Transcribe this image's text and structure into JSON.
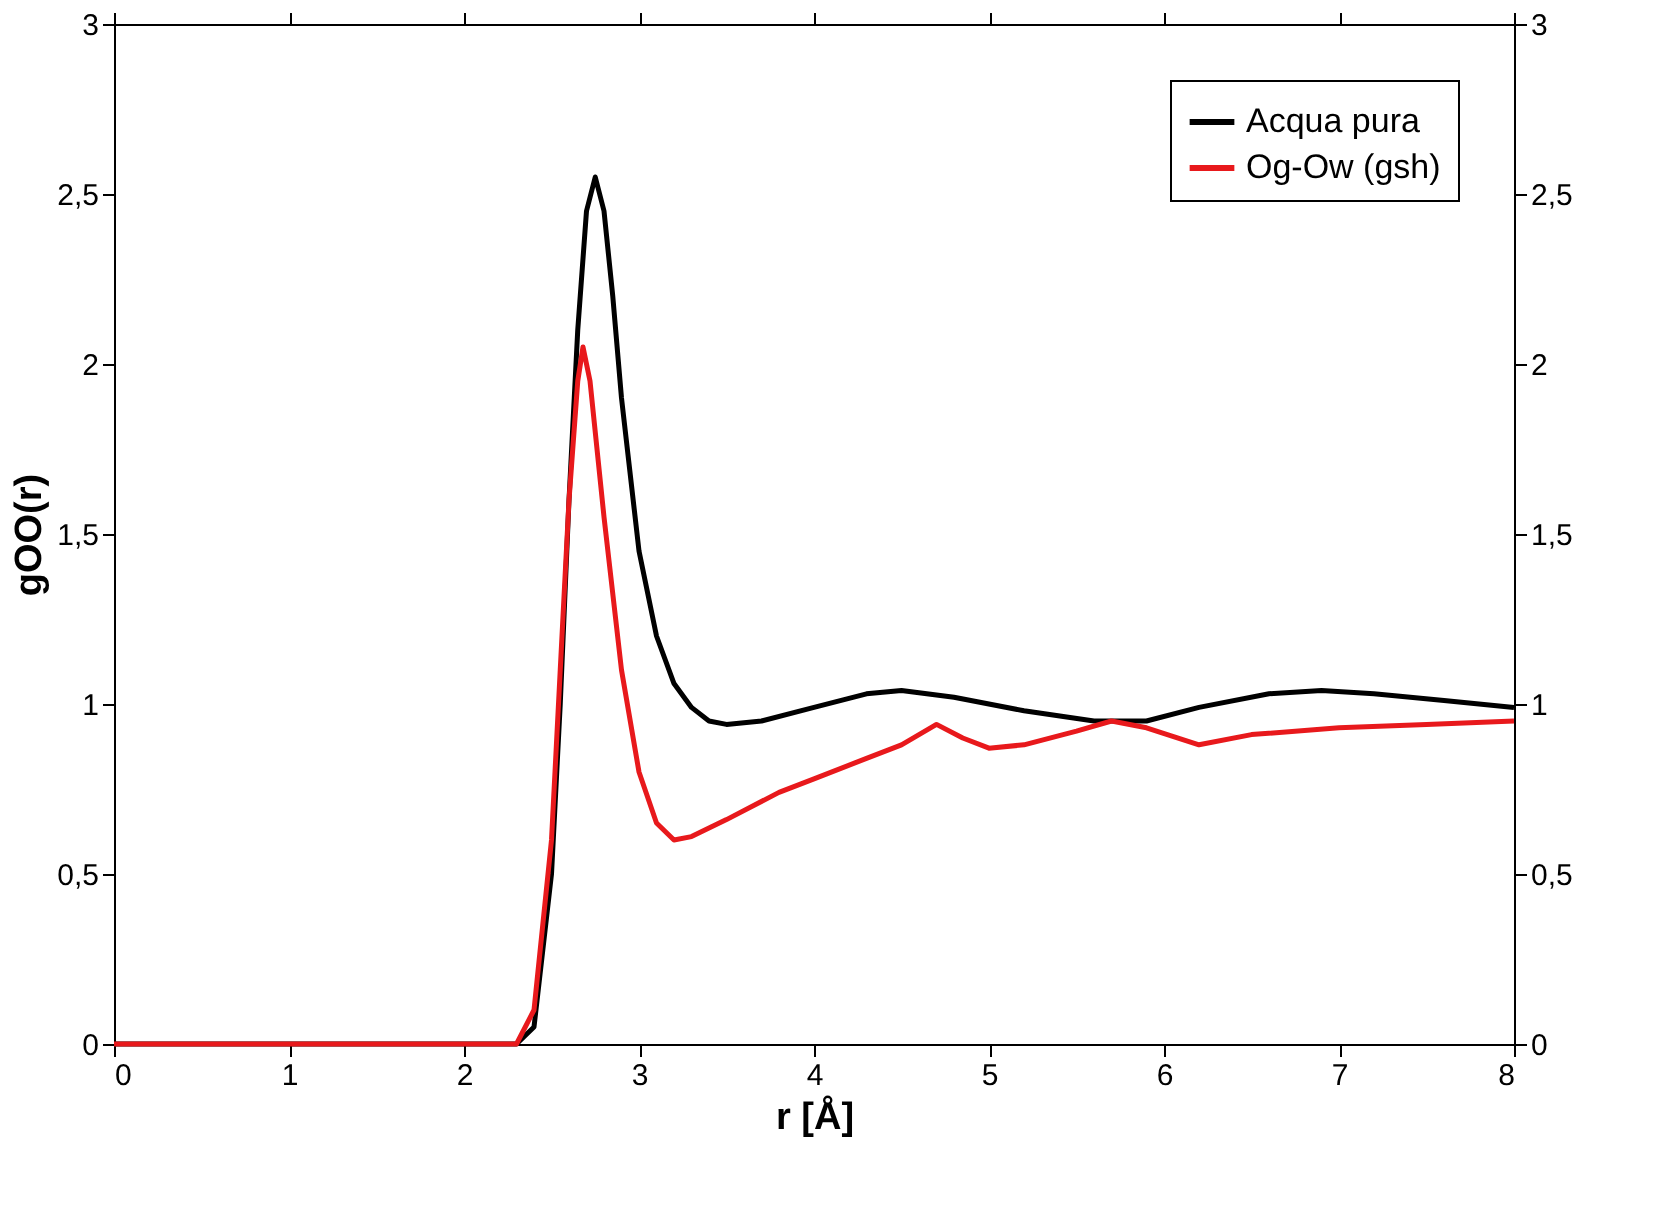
{
  "chart_data": {
    "type": "line",
    "xlabel": "r [Å]",
    "ylabel": "gOO(r)",
    "xlim": [
      0,
      8
    ],
    "xticks": [
      0,
      1,
      2,
      3,
      4,
      5,
      6,
      7,
      8
    ],
    "ylim": [
      0,
      3
    ],
    "yticks": [
      0,
      {
        "value": 0.5,
        "label": "0,5"
      },
      1,
      {
        "value": 1.5,
        "label": "1,5"
      },
      2,
      {
        "value": 2.5,
        "label": "2,5"
      },
      3
    ],
    "y2lim": [
      0,
      3
    ],
    "y2ticks": [
      0,
      {
        "value": 0.5,
        "label": "0,5"
      },
      1,
      {
        "value": 1.5,
        "label": "1,5"
      },
      2,
      {
        "value": 2.5,
        "label": "2,5"
      },
      3
    ],
    "grid": false,
    "legend": "top right",
    "marker": "none",
    "line_style": "solid",
    "series": [
      {
        "name": "Acqua pura",
        "color": "#000000",
        "x": [
          0,
          2.3,
          2.4,
          2.5,
          2.55,
          2.6,
          2.65,
          2.7,
          2.75,
          2.8,
          2.85,
          2.9,
          3.0,
          3.1,
          3.2,
          3.3,
          3.4,
          3.5,
          3.7,
          4.0,
          4.3,
          4.5,
          4.8,
          5.2,
          5.6,
          5.9,
          6.2,
          6.6,
          6.9,
          7.2,
          7.6,
          8.0
        ],
        "values": [
          0,
          0,
          0.05,
          0.5,
          1.0,
          1.6,
          2.1,
          2.45,
          2.55,
          2.45,
          2.2,
          1.9,
          1.45,
          1.2,
          1.06,
          0.99,
          0.95,
          0.94,
          0.95,
          0.99,
          1.03,
          1.04,
          1.02,
          0.98,
          0.95,
          0.95,
          0.99,
          1.03,
          1.04,
          1.03,
          1.01,
          0.99
        ]
      },
      {
        "name": "Og-Ow (gsh)",
        "color": "#e8191c",
        "x": [
          0,
          2.3,
          2.4,
          2.5,
          2.55,
          2.6,
          2.65,
          2.68,
          2.72,
          2.8,
          2.9,
          3.0,
          3.1,
          3.2,
          3.3,
          3.5,
          3.8,
          4.0,
          4.3,
          4.5,
          4.7,
          4.85,
          5.0,
          5.2,
          5.5,
          5.7,
          5.9,
          6.2,
          6.5,
          7.0,
          7.5,
          8.0
        ],
        "values": [
          0,
          0,
          0.1,
          0.6,
          1.1,
          1.6,
          1.95,
          2.05,
          1.95,
          1.55,
          1.1,
          0.8,
          0.65,
          0.6,
          0.61,
          0.66,
          0.74,
          0.78,
          0.84,
          0.88,
          0.94,
          0.9,
          0.87,
          0.88,
          0.92,
          0.95,
          0.93,
          0.88,
          0.91,
          0.93,
          0.94,
          0.95
        ]
      }
    ]
  }
}
